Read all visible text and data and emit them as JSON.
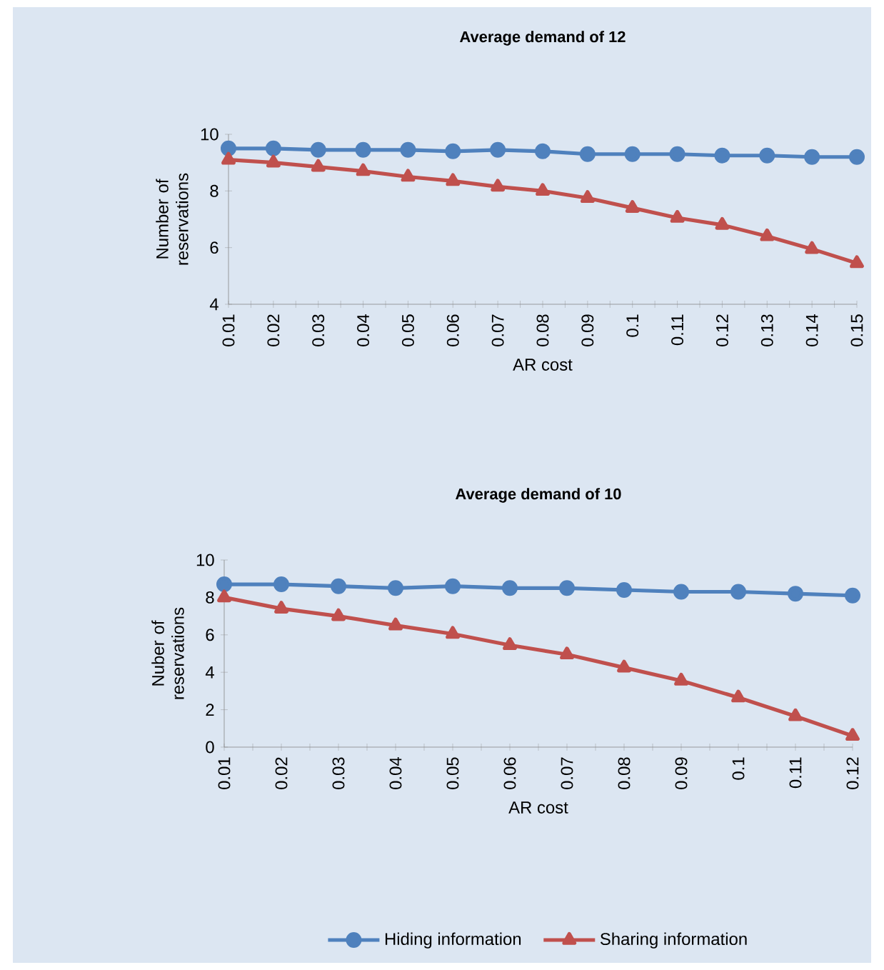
{
  "chart_data": [
    {
      "type": "line",
      "title": "Average demand of 12",
      "xlabel": "AR cost",
      "ylabel": "Number of reservations",
      "categories": [
        "0.01",
        "0.02",
        "0.03",
        "0.04",
        "0.05",
        "0.06",
        "0.07",
        "0.08",
        "0.09",
        "0.1",
        "0.11",
        "0.12",
        "0.13",
        "0.14",
        "0.15"
      ],
      "series": [
        {
          "color": "#4f81bd",
          "marker": "circle",
          "values": [
            9.5,
            9.5,
            9.45,
            9.45,
            9.45,
            9.4,
            9.45,
            9.4,
            9.3,
            9.3,
            9.3,
            9.25,
            9.25,
            9.2,
            9.2
          ]
        },
        {
          "color": "#c0504d",
          "marker": "triangle",
          "values": [
            9.1,
            9.0,
            8.85,
            8.7,
            8.5,
            8.35,
            8.15,
            8.0,
            7.75,
            7.4,
            7.05,
            6.8,
            6.4,
            5.95,
            5.45
          ]
        }
      ],
      "ylim": [
        4,
        10
      ],
      "yticks": [
        4,
        6,
        8,
        10
      ],
      "grid": false,
      "legend": false
    },
    {
      "type": "line",
      "title": "Average demand of 10",
      "xlabel": "AR cost",
      "ylabel": "Nuber of reservations",
      "categories": [
        "0.01",
        "0.02",
        "0.03",
        "0.04",
        "0.05",
        "0.06",
        "0.07",
        "0.08",
        "0.09",
        "0.1",
        "0.11",
        "0.12"
      ],
      "series": [
        {
          "name": "Hiding information",
          "color": "#4f81bd",
          "marker": "circle",
          "values": [
            8.7,
            8.7,
            8.6,
            8.5,
            8.6,
            8.5,
            8.5,
            8.4,
            8.3,
            8.3,
            8.2,
            8.1
          ]
        },
        {
          "name": "Sharing information",
          "color": "#c0504d",
          "marker": "triangle",
          "values": [
            8.0,
            7.4,
            7.0,
            6.5,
            6.05,
            5.45,
            4.95,
            4.25,
            3.55,
            2.65,
            1.65,
            0.6
          ]
        }
      ],
      "ylim": [
        0,
        10
      ],
      "yticks": [
        0,
        2,
        4,
        6,
        8,
        10
      ],
      "grid": false,
      "legend": "bottom"
    }
  ]
}
